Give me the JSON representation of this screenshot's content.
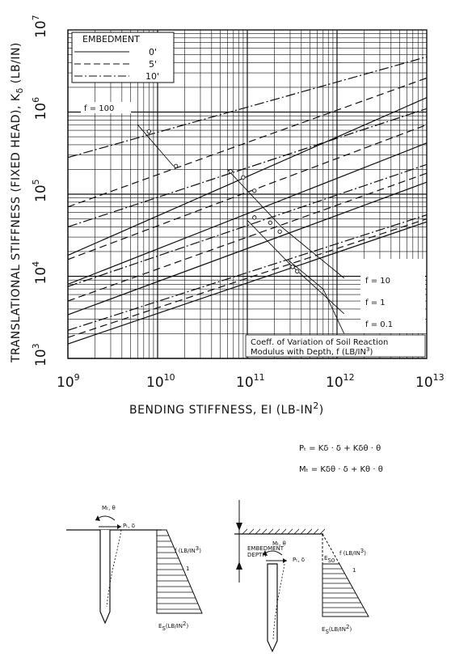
{
  "chart_data": {
    "type": "line",
    "x_scale": "log",
    "y_scale": "log",
    "xlim": [
      1000000000.0,
      10000000000000.0
    ],
    "ylim": [
      1000.0,
      10000000.0
    ],
    "grid": true,
    "xlabel": "BENDING STIFFNESS, EI (LB-IN",
    "xlabel_sup": "2",
    "xlabel_end": ")",
    "ylabel": "TRANSLATIONAL STIFFNESS (FIXED HEAD), K",
    "ylabel_sub": "δ",
    "ylabel_end": " (LB/IN)",
    "x_ticks": [
      {
        "base": "10",
        "exp": "9",
        "value": 1000000000.0
      },
      {
        "base": "10",
        "exp": "10",
        "value": 10000000000.0
      },
      {
        "base": "10",
        "exp": "11",
        "value": 100000000000.0
      },
      {
        "base": "10",
        "exp": "12",
        "value": 1000000000000.0
      },
      {
        "base": "10",
        "exp": "13",
        "value": 10000000000000.0
      }
    ],
    "y_ticks": [
      {
        "base": "10",
        "exp": "3",
        "value": 1000.0
      },
      {
        "base": "10",
        "exp": "4",
        "value": 10000.0
      },
      {
        "base": "10",
        "exp": "5",
        "value": 100000.0
      },
      {
        "base": "10",
        "exp": "6",
        "value": 1000000.0
      },
      {
        "base": "10",
        "exp": "7",
        "value": 10000000.0
      }
    ],
    "legend": {
      "title": "EMBEDMENT",
      "placement": "top-left",
      "entries": [
        {
          "label": "0'",
          "dash": "solid"
        },
        {
          "label": "5'",
          "dash": "dashed"
        },
        {
          "label": "10'",
          "dash": "dashdot"
        }
      ]
    },
    "series": [
      {
        "f": "0.1",
        "embedment": "0'",
        "dash": "solid",
        "x": [
          1000000000.0,
          10000000000000.0
        ],
        "y": [
          1500,
          46000
        ]
      },
      {
        "f": "0.1",
        "embedment": "5'",
        "dash": "dashed",
        "x": [
          1000000000.0,
          10000000000000.0
        ],
        "y": [
          1800,
          50000
        ]
      },
      {
        "f": "0.1",
        "embedment": "10'",
        "dash": "dashdot",
        "x": [
          1000000000.0,
          10000000000000.0
        ],
        "y": [
          2200,
          56000
        ]
      },
      {
        "f": "1",
        "embedment": "0'",
        "dash": "solid",
        "x": [
          1000000000.0,
          10000000000000.0
        ],
        "y": [
          3400,
          140000
        ]
      },
      {
        "f": "1",
        "embedment": "5'",
        "dash": "dashed",
        "x": [
          1000000000.0,
          10000000000000.0
        ],
        "y": [
          5000,
          180000
        ]
      },
      {
        "f": "1",
        "embedment": "10'",
        "dash": "dashdot",
        "x": [
          1000000000.0,
          10000000000000.0
        ],
        "y": [
          7500,
          230000
        ]
      },
      {
        "f": "10",
        "embedment": "0'",
        "dash": "solid",
        "x": [
          1000000000.0,
          10000000000000.0
        ],
        "y": [
          8000,
          420000
        ]
      },
      {
        "f": "10",
        "embedment": "5'",
        "dash": "dashed",
        "x": [
          1000000000.0,
          10000000000000.0
        ],
        "y": [
          16000,
          700000
        ]
      },
      {
        "f": "10",
        "embedment": "10'",
        "dash": "dashdot",
        "x": [
          1000000000.0,
          10000000000000.0
        ],
        "y": [
          40000,
          1100000
        ]
      },
      {
        "f": "100",
        "embedment": "0'",
        "dash": "solid",
        "x": [
          1000000000.0,
          10000000000000.0
        ],
        "y": [
          18000,
          1500000
        ]
      },
      {
        "f": "100",
        "embedment": "5'",
        "dash": "dashed",
        "x": [
          1000000000.0,
          10000000000000.0
        ],
        "y": [
          70000,
          2600000
        ]
      },
      {
        "f": "100",
        "embedment": "10'",
        "dash": "dashdot",
        "x": [
          1000000000.0,
          10000000000000.0
        ],
        "y": [
          280000,
          4700000
        ]
      }
    ],
    "f_lines": [
      {
        "label": "f = 100",
        "points": [
          [
            6000000000.0,
            700000
          ],
          [
            15000000000.0,
            220000
          ]
        ]
      },
      {
        "label": "f = 10",
        "points": [
          [
            60000000000.0,
            200000
          ],
          [
            240000000000.0,
            40000
          ],
          [
            1200000000000.0,
            9500
          ]
        ]
      },
      {
        "label": "f = 1",
        "points": [
          [
            100000000000.0,
            48000
          ],
          [
            300000000000.0,
            14000
          ],
          [
            1200000000000.0,
            3500
          ]
        ]
      },
      {
        "label": "f = 0.1",
        "points": [
          [
            280000000000.0,
            16000
          ],
          [
            700000000000.0,
            7000
          ],
          [
            1200000000000.0,
            2000
          ]
        ]
      }
    ],
    "f_markers": [
      {
        "x": 8000000000.0,
        "y": 580000
      },
      {
        "x": 16000000000.0,
        "y": 220000
      },
      {
        "x": 65000000000.0,
        "y": 190000
      },
      {
        "x": 90000000000.0,
        "y": 160000
      },
      {
        "x": 120000000000.0,
        "y": 110000
      },
      {
        "x": 180000000000.0,
        "y": 45000
      },
      {
        "x": 230000000000.0,
        "y": 35000
      },
      {
        "x": 320000000000.0,
        "y": 13000
      },
      {
        "x": 360000000000.0,
        "y": 11500
      },
      {
        "x": 120000000000.0,
        "y": 52000
      }
    ],
    "annotations": {
      "f100": "f = 100",
      "f10": "f = 10",
      "f1": "f = 1",
      "f01": "f = 0.1",
      "coeff_line1": "Coeff. of Variation of Soil Reaction",
      "coeff_line2": "Modulus with Depth, f (LB/IN",
      "coeff_sup": "3",
      "coeff_end": ")"
    }
  },
  "equations": {
    "eq1": "Pₜ = Kδ · δ + Kδθ · θ",
    "eq2": "Mₜ = Kδθ · δ + Kθ · θ"
  },
  "sketches": {
    "left": {
      "moment": "Mₜ, θ",
      "force": "Pₜ, δ",
      "f_label": "f (LB/IN",
      "f_sup": "3",
      "f_end": ")",
      "slope_label": "1",
      "es_label": "E",
      "es_sub": "S",
      "es_end": "(LB/IN",
      "es_sup": "2",
      "es_close": ")"
    },
    "right": {
      "moment": "Mₜ, θ",
      "force": "Pₜ, δ",
      "embedment_line1": "EMBEDMENT",
      "embedment_line2": "DEPTH",
      "es0": "E",
      "es0_sub": "S0",
      "f_label": "f (LB/IN",
      "f_sup": "3",
      "f_end": ")",
      "slope_label": "1",
      "es_label": "E",
      "es_sub": "S",
      "es_end": "(LB/IN",
      "es_sup": "2",
      "es_close": ")"
    }
  }
}
